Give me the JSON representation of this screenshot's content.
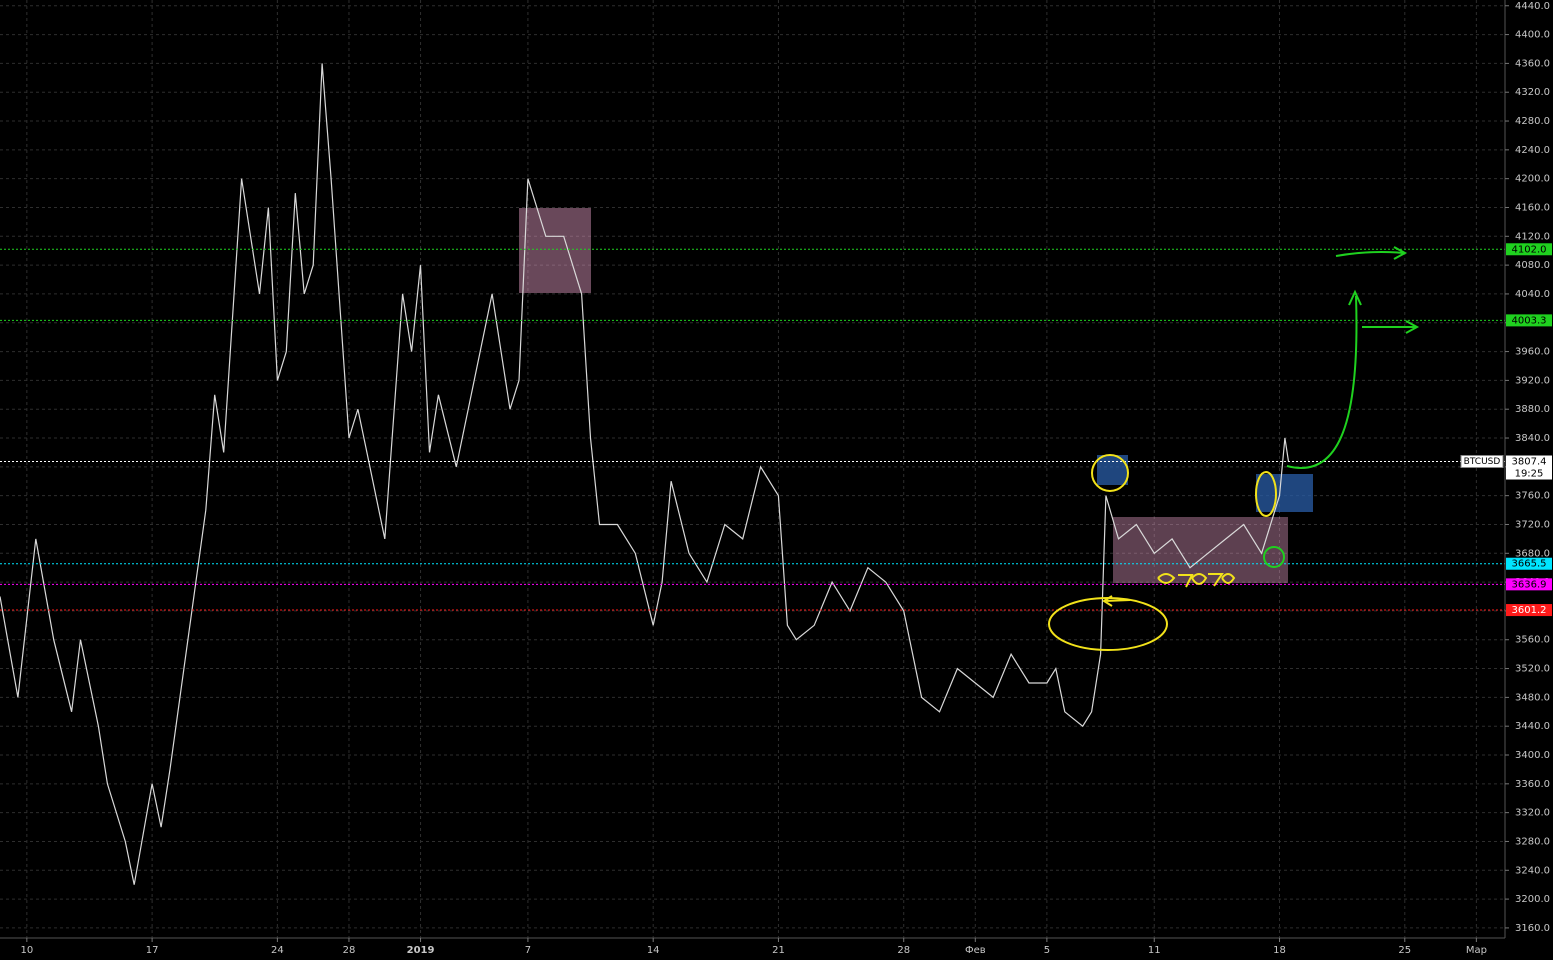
{
  "chart_data": {
    "type": "line",
    "x": [
      -1.5,
      -0.5,
      0.5,
      1.5,
      2.5,
      3,
      4,
      4.5,
      5.5,
      6,
      7,
      7.5,
      8,
      9,
      10,
      10.5,
      11,
      12,
      13,
      13.5,
      14,
      14.5,
      15,
      15.5,
      16,
      16.5,
      17,
      18,
      18.5,
      19,
      20,
      21,
      21.5,
      22,
      22.5,
      23,
      24,
      25,
      26,
      27,
      27.5,
      28,
      29,
      30,
      31,
      31.5,
      32,
      33,
      34,
      35,
      35.5,
      36,
      37,
      38,
      39,
      40,
      41,
      42,
      42.5,
      43,
      44,
      45,
      46,
      47,
      48,
      49,
      50,
      51,
      52,
      53,
      54,
      55,
      56,
      57,
      57.5,
      58,
      59,
      59.5,
      60,
      60.3,
      61,
      62,
      63,
      64,
      65,
      66,
      67,
      68,
      69,
      70,
      70.3,
      70.5
    ],
    "series": [
      {
        "name": "BTCUSD",
        "color": "#d9d9d9",
        "values": [
          3620,
          3480,
          3700,
          3560,
          3460,
          3560,
          3440,
          3360,
          3280,
          3220,
          3360,
          3300,
          3380,
          3560,
          3740,
          3900,
          3820,
          4200,
          4040,
          4160,
          3920,
          3960,
          4180,
          4040,
          4080,
          4360,
          4200,
          3840,
          3880,
          3820,
          3700,
          4040,
          3960,
          4080,
          3820,
          3900,
          3800,
          3920,
          4040,
          3880,
          3920,
          4200,
          4120,
          4120,
          4040,
          3840,
          3720,
          3720,
          3680,
          3580,
          3640,
          3780,
          3680,
          3640,
          3720,
          3700,
          3800,
          3760,
          3580,
          3560,
          3580,
          3640,
          3600,
          3660,
          3640,
          3600,
          3480,
          3460,
          3520,
          3500,
          3480,
          3540,
          3500,
          3500,
          3520,
          3460,
          3440,
          3460,
          3540,
          3760,
          3700,
          3720,
          3680,
          3700,
          3660,
          3680,
          3700,
          3720,
          3680,
          3760,
          3840,
          3807.4
        ]
      }
    ],
    "xlim": [
      -1.5,
      82.6
    ],
    "xticks": [
      {
        "value": 0,
        "label": "10"
      },
      {
        "value": 7,
        "label": "17"
      },
      {
        "value": 14,
        "label": "24"
      },
      {
        "value": 18,
        "label": "28"
      },
      {
        "value": 22,
        "label": "2019"
      },
      {
        "value": 28,
        "label": "7"
      },
      {
        "value": 35,
        "label": "14"
      },
      {
        "value": 42,
        "label": "21"
      },
      {
        "value": 49,
        "label": "28"
      },
      {
        "value": 53,
        "label": "Фев"
      },
      {
        "value": 57,
        "label": "5"
      },
      {
        "value": 63,
        "label": "11"
      },
      {
        "value": 70,
        "label": "18"
      },
      {
        "value": 77,
        "label": "25"
      },
      {
        "value": 81,
        "label": "Мар"
      }
    ],
    "ylim": [
      3146,
      4448
    ],
    "yticks": [
      {
        "value": 3160,
        "label": "3160.0"
      },
      {
        "value": 3200,
        "label": "3200.0"
      },
      {
        "value": 3240,
        "label": "3240.0"
      },
      {
        "value": 3280,
        "label": "3280.0"
      },
      {
        "value": 3320,
        "label": "3320.0"
      },
      {
        "value": 3360,
        "label": "3360.0"
      },
      {
        "value": 3400,
        "label": "3400.0"
      },
      {
        "value": 3440,
        "label": "3440.0"
      },
      {
        "value": 3480,
        "label": "3480.0"
      },
      {
        "value": 3520,
        "label": "3520.0"
      },
      {
        "value": 3560,
        "label": "3560.0"
      },
      {
        "value": 3600,
        "label": "3600.0"
      },
      {
        "value": 3640,
        "label": "3640.0"
      },
      {
        "value": 3680,
        "label": "3680.0"
      },
      {
        "value": 3720,
        "label": "3720.0"
      },
      {
        "value": 3760,
        "label": "3760.0"
      },
      {
        "value": 3800,
        "label": "3800.0"
      },
      {
        "value": 3840,
        "label": "3840.0"
      },
      {
        "value": 3880,
        "label": "3880.0"
      },
      {
        "value": 3920,
        "label": "3920.0"
      },
      {
        "value": 3960,
        "label": "3960.0"
      },
      {
        "value": 4000,
        "label": "4000.0"
      },
      {
        "value": 4040,
        "label": "4040.0"
      },
      {
        "value": 4080,
        "label": "4080.0"
      },
      {
        "value": 4120,
        "label": "4120.0"
      },
      {
        "value": 4160,
        "label": "4160.0"
      },
      {
        "value": 4200,
        "label": "4200.0"
      },
      {
        "value": 4240,
        "label": "4240.0"
      },
      {
        "value": 4280,
        "label": "4280.0"
      },
      {
        "value": 4320,
        "label": "4320.0"
      },
      {
        "value": 4360,
        "label": "4360.0"
      },
      {
        "value": 4400,
        "label": "4400.0"
      },
      {
        "value": 4440,
        "label": "4440.0"
      }
    ],
    "grid": true,
    "levels": [
      {
        "value": 4102.0,
        "label": "4102.0",
        "color": "#1fd11f",
        "text_color": "#000000"
      },
      {
        "value": 4003.3,
        "label": "4003.3",
        "color": "#1fd11f",
        "text_color": "#000000"
      },
      {
        "value": 3807.4,
        "label": "3807.4",
        "color": "#ffffff",
        "text_color": "#000000"
      },
      {
        "value": 3665.5,
        "label": "3665.5",
        "color": "#00e5ff",
        "text_color": "#000000"
      },
      {
        "value": 3636.9,
        "label": "3636.9",
        "color": "#ff00ff",
        "text_color": "#000000"
      },
      {
        "value": 3601.2,
        "label": "3601.2",
        "color": "#ff1a1a",
        "text_color": "#ffffff"
      }
    ],
    "countdown": "19:25"
  }
}
